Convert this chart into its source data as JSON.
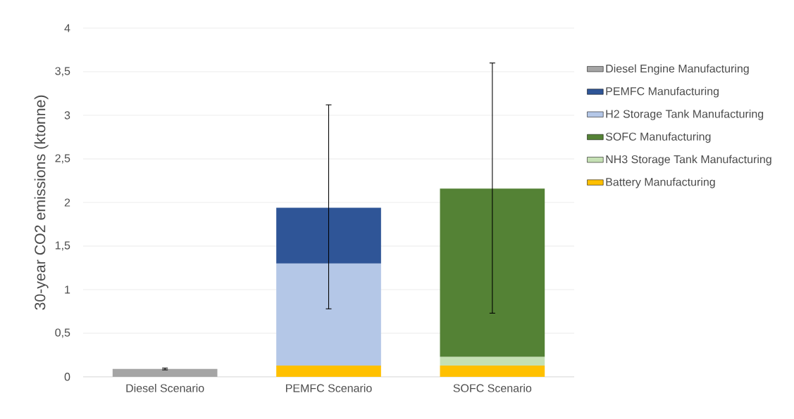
{
  "chart_data": {
    "type": "bar",
    "stacked": true,
    "ylabel": "30-year CO2 emissions (ktonne)",
    "categories": [
      "Diesel Scenario",
      "PEMFC Scenario",
      "SOFC Scenario"
    ],
    "ylim": [
      0,
      4
    ],
    "yticks": [
      0,
      {
        "value": 0.5,
        "label": "0,5"
      },
      1,
      {
        "value": 1.5,
        "label": "1,5"
      },
      2,
      {
        "value": 2.5,
        "label": "2,5"
      },
      3,
      {
        "value": 3.5,
        "label": "3,5"
      },
      4
    ],
    "grid": "y",
    "legend": "right",
    "series": [
      {
        "name": "Battery Manufacturing",
        "color": "#ffc000",
        "values": [
          null,
          0.13,
          0.13
        ]
      },
      {
        "name": "NH3 Storage Tank Manufacturing",
        "color": "#c5e0b4",
        "values": [
          null,
          null,
          0.1
        ]
      },
      {
        "name": "SOFC Manufacturing",
        "color": "#548235",
        "values": [
          null,
          null,
          1.93
        ],
        "errors": [
          null,
          null,
          [
            0.73,
            3.6
          ]
        ]
      },
      {
        "name": "H2 Storage Tank Manufacturing",
        "color": "#b4c7e7",
        "values": [
          null,
          1.17,
          null
        ]
      },
      {
        "name": "PEMFC Manufacturing",
        "color": "#2f5597",
        "values": [
          null,
          0.64,
          null
        ],
        "errors": [
          null,
          [
            0.78,
            3.12
          ],
          null
        ]
      },
      {
        "name": "Diesel Engine Manufacturing",
        "color": "#a5a5a5",
        "values": [
          0.09,
          null,
          null
        ],
        "errors": [
          [
            0.08,
            0.1
          ],
          null,
          null
        ]
      }
    ]
  }
}
